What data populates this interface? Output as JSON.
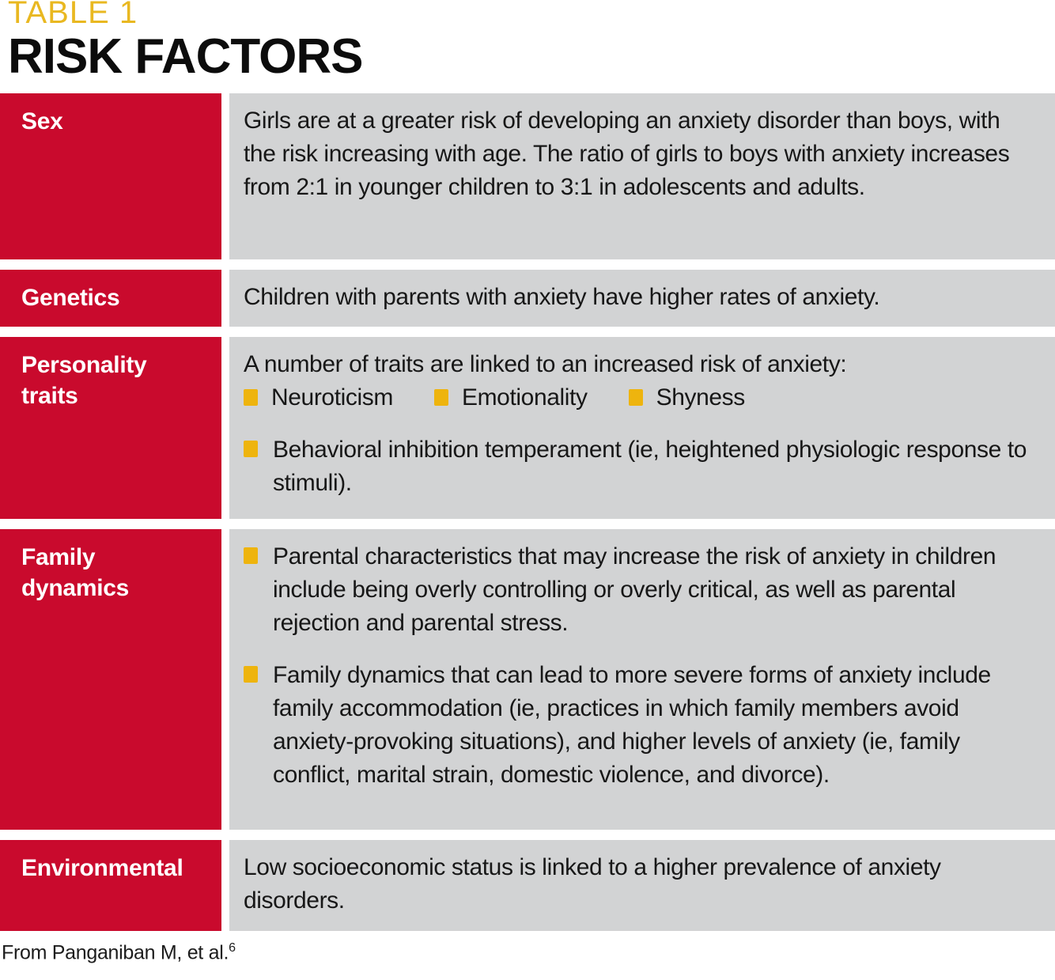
{
  "header": {
    "kicker": "TABLE 1",
    "title": "RISK FACTORS"
  },
  "colors": {
    "label_red": "#c90a2d",
    "bullet_gold": "#eeb40e",
    "kicker_gold": "#e9b821",
    "cell_gray": "#d2d3d4",
    "text_black": "#171717"
  },
  "table": {
    "rows": [
      {
        "label": "Sex",
        "text": "Girls are at a greater risk of developing an anxiety disorder than boys, with the risk increasing with age. The ratio of girls to boys with anxiety increases from 2:1 in younger children to 3:1 in adolescents and adults."
      },
      {
        "label": "Genetics",
        "text": "Children with parents with anxiety have higher rates of anxiety."
      },
      {
        "label": "Personality traits",
        "intro": "A number of traits are linked to an increased risk of anxiety:",
        "inline_bullets": [
          "Neuroticism",
          "Emotionality",
          "Shyness"
        ],
        "bullets": [
          "Behavioral inhibition temperament (ie, heightened physiologic response to stimuli)."
        ]
      },
      {
        "label": "Family dynamics",
        "bullets": [
          "Parental characteristics that may increase the risk of anxiety in children include being overly controlling or overly critical, as well as parental rejection and parental stress.",
          "Family dynamics that can lead to more severe forms of anxiety include family accommodation (ie, practices in which family members avoid anxiety-provoking situations), and higher levels of anxiety (ie, family conflict, marital strain, domestic violence, and divorce)."
        ]
      },
      {
        "label": "Environmental",
        "text": "Low socioeconomic status is linked to a higher prevalence of anxiety disorders."
      }
    ]
  },
  "footer": {
    "text": "From Panganiban M, et al.",
    "superscript": "6"
  }
}
